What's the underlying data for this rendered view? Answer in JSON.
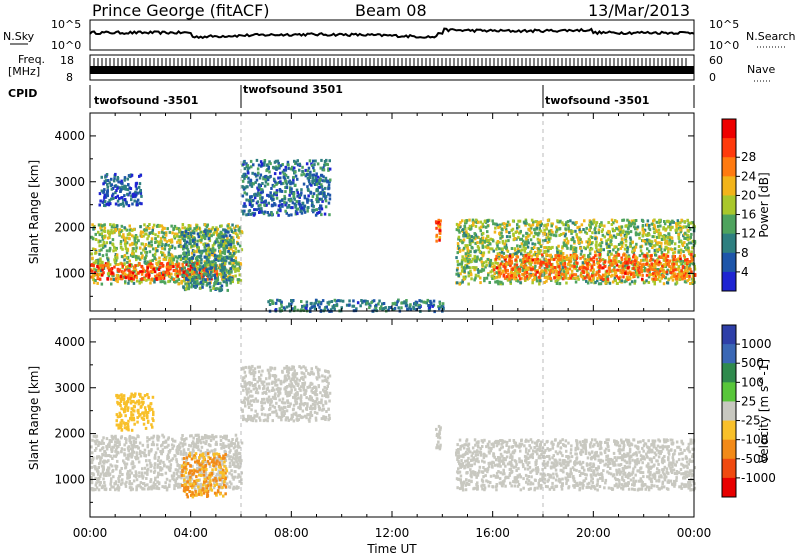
{
  "header": {
    "station": "Prince George (fitACF)",
    "beam": "Beam 08",
    "date": "13/Mar/2013"
  },
  "top_panels": {
    "nsky_label": "N.Sky",
    "nsky_ticks": [
      "10^5",
      "10^0"
    ],
    "nsearch_label": "N.Search",
    "nsearch_ticks": [
      "10^5",
      "10^0"
    ],
    "freq_label_1": "Freq.",
    "freq_label_2": "[MHz]",
    "freq_ticks": [
      "18",
      "8"
    ],
    "nave_label": "Nave",
    "nave_ticks": [
      "60",
      "0"
    ],
    "cpid_label": "CPID",
    "cpid_segments": [
      "twofsound -3501",
      "twofsound 3501",
      "twofsound -3501"
    ]
  },
  "chart_data": [
    {
      "type": "heatmap",
      "title": "",
      "xlabel": "Time UT",
      "ylabel": "Slant Range [km]",
      "xlim": [
        0,
        24
      ],
      "ylim": [
        180,
        4500
      ],
      "x_ticks": [
        "00:00",
        "04:00",
        "08:00",
        "12:00",
        "16:00",
        "20:00",
        "00:00"
      ],
      "y_ticks": [
        1000,
        2000,
        3000,
        4000
      ],
      "colorbar": {
        "label": "Power [dB]",
        "ticks": [
          4,
          8,
          12,
          16,
          20,
          24,
          28
        ],
        "range": [
          0,
          30
        ],
        "colors": [
          "#1e24d2",
          "#1d55a9",
          "#2e7f80",
          "#4ea35e",
          "#a9c72b",
          "#f2b41a",
          "#ff7a10",
          "#ff3a0c",
          "#ee0000"
        ]
      },
      "regions": [
        {
          "t0": 0.0,
          "t1": 6.0,
          "r0": 800,
          "r1": 2100,
          "level": 14
        },
        {
          "t0": 0.0,
          "t1": 5.3,
          "r0": 900,
          "r1": 1250,
          "level": 24
        },
        {
          "t0": 3.6,
          "t1": 5.6,
          "r0": 650,
          "r1": 2000,
          "level": 9
        },
        {
          "t0": 0.3,
          "t1": 2.0,
          "r0": 2500,
          "r1": 3200,
          "level": 5
        },
        {
          "t0": 6.0,
          "t1": 9.5,
          "r0": 2300,
          "r1": 3500,
          "level": 7
        },
        {
          "t0": 14.5,
          "t1": 24.0,
          "r0": 800,
          "r1": 2200,
          "level": 14
        },
        {
          "t0": 16.0,
          "t1": 24.0,
          "r0": 900,
          "r1": 1450,
          "level": 22
        },
        {
          "t0": 13.7,
          "t1": 13.9,
          "r0": 1700,
          "r1": 2200,
          "level": 24
        },
        {
          "t0": 7.0,
          "t1": 14.0,
          "r0": 200,
          "r1": 450,
          "level": 8
        }
      ]
    },
    {
      "type": "heatmap",
      "title": "",
      "xlabel": "Time UT",
      "ylabel": "Slant Range [km]",
      "xlim": [
        0,
        24
      ],
      "ylim": [
        180,
        4500
      ],
      "x_ticks": [
        "00:00",
        "04:00",
        "08:00",
        "12:00",
        "16:00",
        "20:00",
        "00:00"
      ],
      "y_ticks": [
        1000,
        2000,
        3000,
        4000
      ],
      "colorbar": {
        "label": "Velocity [m s^-1]",
        "ticks": [
          1000,
          500,
          100,
          25,
          -25,
          -100,
          -500,
          -1000
        ],
        "range": [
          -1200,
          1200
        ],
        "colors": [
          "#2e3fa8",
          "#3a67b5",
          "#2f8a4d",
          "#58c63a",
          "#c8c8c0",
          "#f8c02a",
          "#f28a18",
          "#f04a10",
          "#e80000"
        ]
      },
      "regions": [
        {
          "t0": 0.0,
          "t1": 6.0,
          "r0": 800,
          "r1": 2000,
          "level": 0
        },
        {
          "t0": 14.5,
          "t1": 24.0,
          "r0": 800,
          "r1": 1900,
          "level": 0
        },
        {
          "t0": 6.0,
          "t1": 9.5,
          "r0": 2300,
          "r1": 3500,
          "level": 0
        },
        {
          "t0": 3.6,
          "t1": 5.4,
          "r0": 650,
          "r1": 1600,
          "level": -400
        },
        {
          "t0": 1.0,
          "t1": 2.5,
          "r0": 2100,
          "r1": 2900,
          "level": -300
        },
        {
          "t0": 13.7,
          "t1": 13.9,
          "r0": 1700,
          "r1": 2200,
          "level": 60
        }
      ]
    }
  ]
}
